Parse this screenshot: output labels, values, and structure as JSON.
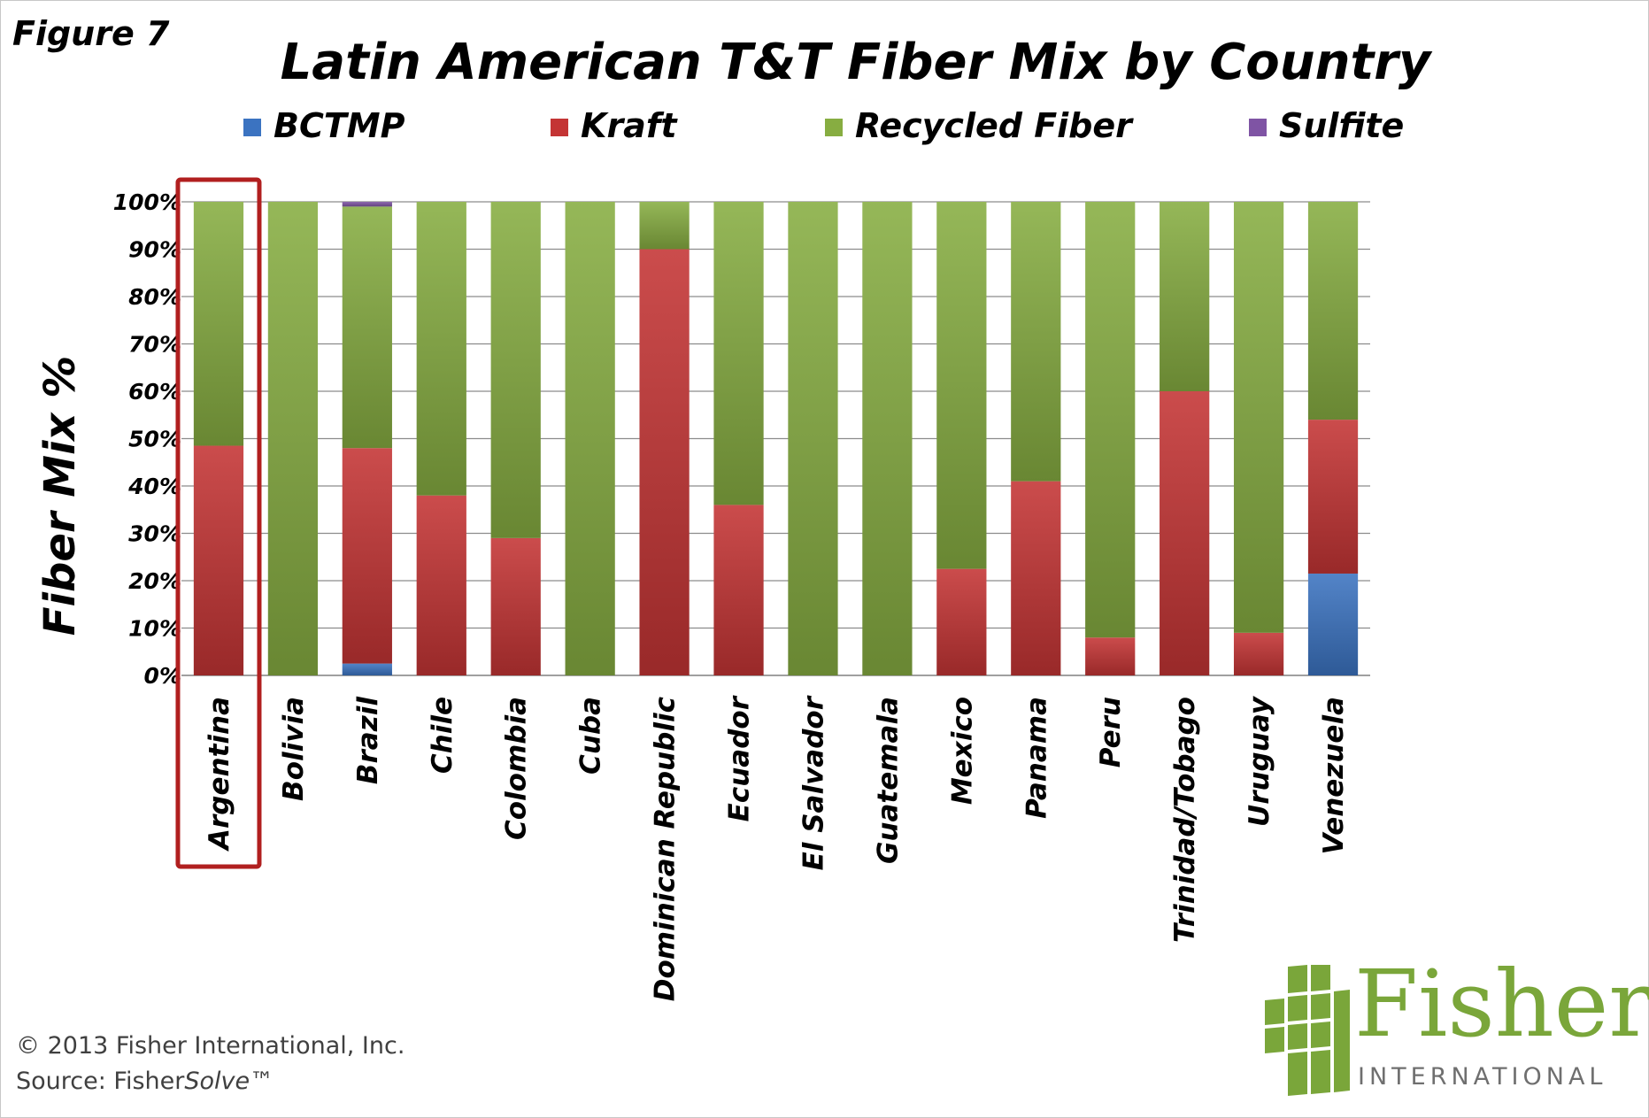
{
  "figure_label": "Figure 7",
  "footer": {
    "copyright": "© 2013 Fisher International, Inc.",
    "source_prefix": "Source: Fisher",
    "source_italic": "Solve",
    "source_suffix": "™"
  },
  "logo": {
    "word": "Fisher",
    "sub": "INTERNATIONAL",
    "color": "#7aa63a"
  },
  "chart_data": {
    "type": "bar",
    "stacked": true,
    "title": "Latin American T&T Fiber Mix by Country",
    "ylabel": "Fiber Mix %",
    "xlabel": "",
    "ylim": [
      0,
      100
    ],
    "yticks": [
      "0%",
      "10%",
      "20%",
      "30%",
      "40%",
      "50%",
      "60%",
      "70%",
      "80%",
      "90%",
      "100%"
    ],
    "grid": true,
    "legend_position": "top",
    "highlighted_category": "Argentina",
    "highlight_color": "#b11f1f",
    "categories": [
      "Argentina",
      "Bolivia",
      "Brazil",
      "Chile",
      "Colombia",
      "Cuba",
      "Dominican Republic",
      "Ecuador",
      "El Salvador",
      "Guatemala",
      "Mexico",
      "Panama",
      "Peru",
      "Trinidad/Tobago",
      "Uruguay",
      "Venezuela"
    ],
    "series": [
      {
        "name": "BCTMP",
        "color": "#3b73c1",
        "values": [
          0,
          0,
          2.5,
          0,
          0,
          0,
          0,
          0,
          0,
          0,
          0,
          0,
          0,
          0,
          0,
          21.5
        ]
      },
      {
        "name": "Kraft",
        "color": "#c43434",
        "values": [
          48.5,
          0,
          45.5,
          38,
          29,
          0,
          90,
          36,
          0,
          0,
          22.5,
          41,
          8,
          60,
          9,
          32.5
        ]
      },
      {
        "name": "Recycled Fiber",
        "color": "#87ad41",
        "values": [
          51.5,
          100,
          51,
          62,
          71,
          100,
          10,
          64,
          100,
          100,
          77.5,
          59,
          92,
          40,
          91,
          46
        ]
      },
      {
        "name": "Sulfite",
        "color": "#7f54a4",
        "values": [
          0,
          0,
          1,
          0,
          0,
          0,
          0,
          0,
          0,
          0,
          0,
          0,
          0,
          0,
          0,
          0
        ]
      }
    ]
  }
}
